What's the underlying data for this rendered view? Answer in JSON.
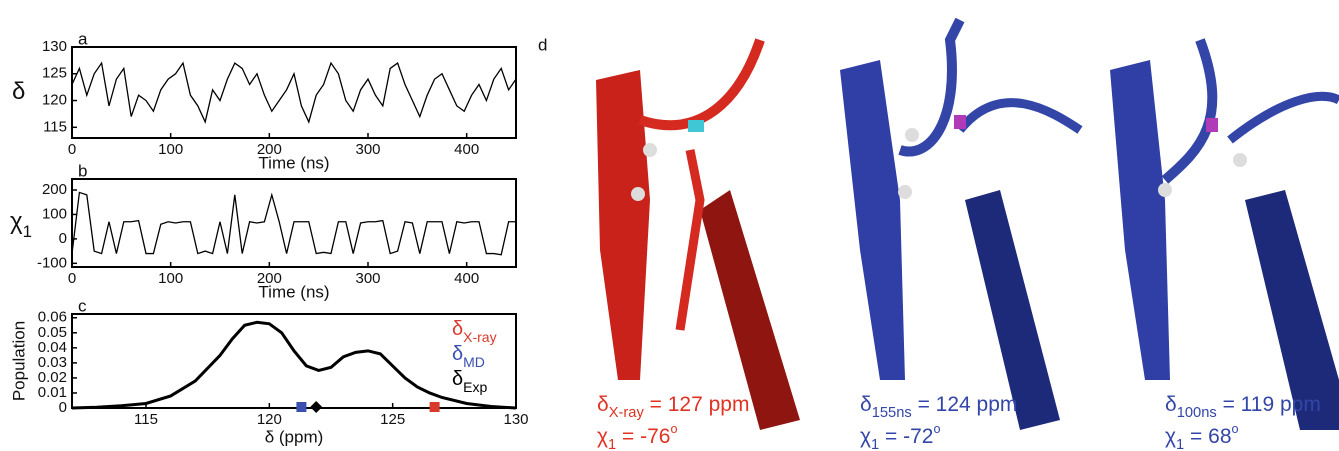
{
  "chart_data": [
    {
      "type": "line",
      "panel_label": "a",
      "ylabel": "δ",
      "xlabel": "Time (ns)",
      "x": [
        0,
        7.5,
        15,
        22.5,
        30,
        37.5,
        45,
        52.5,
        60,
        67.5,
        75,
        82.5,
        90,
        97.5,
        105,
        112.5,
        120,
        127.5,
        135,
        142.5,
        150,
        157.5,
        165,
        172.5,
        180,
        187.5,
        195,
        202.5,
        210,
        217.5,
        225,
        232.5,
        240,
        247.5,
        255,
        262.5,
        270,
        277.5,
        285,
        292.5,
        300,
        307.5,
        315,
        322.5,
        330,
        337.5,
        345,
        352.5,
        360,
        367.5,
        375,
        382.5,
        390,
        397.5,
        405,
        412.5,
        420,
        427.5,
        435,
        442.5,
        450
      ],
      "series": [
        {
          "color": "#000000",
          "values": [
            123,
            126,
            121,
            125,
            127,
            119,
            124,
            126,
            117,
            121,
            120,
            118,
            122,
            124,
            125,
            127,
            121,
            119,
            116,
            122,
            120,
            124,
            127,
            126,
            123,
            125,
            121,
            118,
            120,
            122,
            125,
            119,
            116,
            121,
            123,
            127,
            125,
            120,
            118,
            122,
            124,
            121,
            119,
            126,
            127,
            123,
            120,
            117,
            121,
            124,
            125,
            122,
            119,
            118,
            121,
            123,
            120,
            124,
            126,
            122,
            124
          ]
        }
      ],
      "xlim": [
        0,
        450
      ],
      "ylim": [
        113,
        130
      ],
      "xticks": [
        0,
        100,
        200,
        300,
        400
      ],
      "yticks": [
        115,
        120,
        125,
        130
      ]
    },
    {
      "type": "line",
      "panel_label": "b",
      "ylabel": {
        "symbol": "χ",
        "subscript": "1"
      },
      "xlabel": "Time (ns)",
      "x": [
        0,
        7.5,
        15,
        22.5,
        30,
        37.5,
        45,
        52.5,
        60,
        67.5,
        75,
        82.5,
        90,
        97.5,
        105,
        112.5,
        120,
        127.5,
        135,
        142.5,
        150,
        157.5,
        165,
        172.5,
        180,
        187.5,
        195,
        202.5,
        210,
        217.5,
        225,
        232.5,
        240,
        247.5,
        255,
        262.5,
        270,
        277.5,
        285,
        292.5,
        300,
        307.5,
        315,
        322.5,
        330,
        337.5,
        345,
        352.5,
        360,
        367.5,
        375,
        382.5,
        390,
        397.5,
        405,
        412.5,
        420,
        427.5,
        435,
        442.5,
        450
      ],
      "series": [
        {
          "color": "#000000",
          "values": [
            -60,
            190,
            180,
            -50,
            -60,
            70,
            -60,
            70,
            70,
            75,
            -60,
            -60,
            60,
            70,
            65,
            70,
            70,
            -60,
            -50,
            -60,
            70,
            -60,
            180,
            -60,
            70,
            65,
            70,
            180,
            70,
            -60,
            70,
            70,
            70,
            -60,
            -55,
            -60,
            70,
            70,
            -60,
            65,
            70,
            70,
            75,
            -60,
            -50,
            70,
            65,
            -60,
            70,
            70,
            70,
            -60,
            70,
            65,
            70,
            70,
            -60,
            -60,
            -65,
            70,
            70
          ]
        }
      ],
      "xlim": [
        0,
        450
      ],
      "ylim": [
        -115,
        245
      ],
      "xticks": [
        0,
        100,
        200,
        300,
        400
      ],
      "yticks": [
        -100,
        0,
        100,
        200
      ]
    },
    {
      "type": "line",
      "panel_label": "c",
      "ylabel": "Population",
      "xlabel": "δ (ppm)",
      "x": [
        112,
        113,
        114,
        115,
        116,
        117,
        118,
        118.5,
        119,
        119.5,
        120,
        120.5,
        121,
        121.5,
        122,
        122.5,
        123,
        123.5,
        124,
        124.5,
        125,
        125.5,
        126,
        126.5,
        127,
        128,
        129,
        130
      ],
      "series": [
        {
          "color": "#000000",
          "values": [
            0,
            0.0005,
            0.0015,
            0.003,
            0.008,
            0.018,
            0.035,
            0.046,
            0.055,
            0.057,
            0.056,
            0.05,
            0.038,
            0.028,
            0.025,
            0.027,
            0.034,
            0.037,
            0.038,
            0.036,
            0.028,
            0.02,
            0.014,
            0.01,
            0.007,
            0.003,
            0.001,
            0
          ]
        }
      ],
      "markers": [
        {
          "name": {
            "symbol": "δ",
            "subscript": "X-ray"
          },
          "color": "#d93a2b",
          "shape": "square",
          "x": 126.7
        },
        {
          "name": {
            "symbol": "δ",
            "subscript": "MD"
          },
          "color": "#3b4fb0",
          "shape": "square",
          "x": 121.3
        },
        {
          "name": {
            "symbol": "δ",
            "subscript": "Exp"
          },
          "color": "#000000",
          "shape": "diamond",
          "x": 121.9
        }
      ],
      "xlim": [
        112,
        130
      ],
      "ylim": [
        0,
        0.0625
      ],
      "xticks": [
        115,
        120,
        125,
        130
      ],
      "yticks": [
        0,
        0.01,
        0.02,
        0.03,
        0.04,
        0.05,
        0.06
      ]
    }
  ],
  "panel_d": {
    "label": "d",
    "structures": [
      {
        "color": "#e03324",
        "shift": {
          "symbol": "δ",
          "subscript": "X-ray",
          "text": " = 127 ppm"
        },
        "chi": {
          "symbol": "χ",
          "subscript": "1",
          "text": " = -76",
          "superscript": "o"
        }
      },
      {
        "color": "#3346a8",
        "shift": {
          "symbol": "δ",
          "subscript": "155ns",
          "text": " = 124 ppm"
        },
        "chi": {
          "symbol": "χ",
          "subscript": "1",
          "text": " = -72",
          "superscript": "o"
        }
      },
      {
        "color": "#3346a8",
        "shift": {
          "symbol": "δ",
          "subscript": "100ns",
          "text": " = 119 ppm"
        },
        "chi": {
          "symbol": "χ",
          "subscript": "1",
          "text": " = 68",
          "superscript": "o"
        }
      }
    ]
  }
}
